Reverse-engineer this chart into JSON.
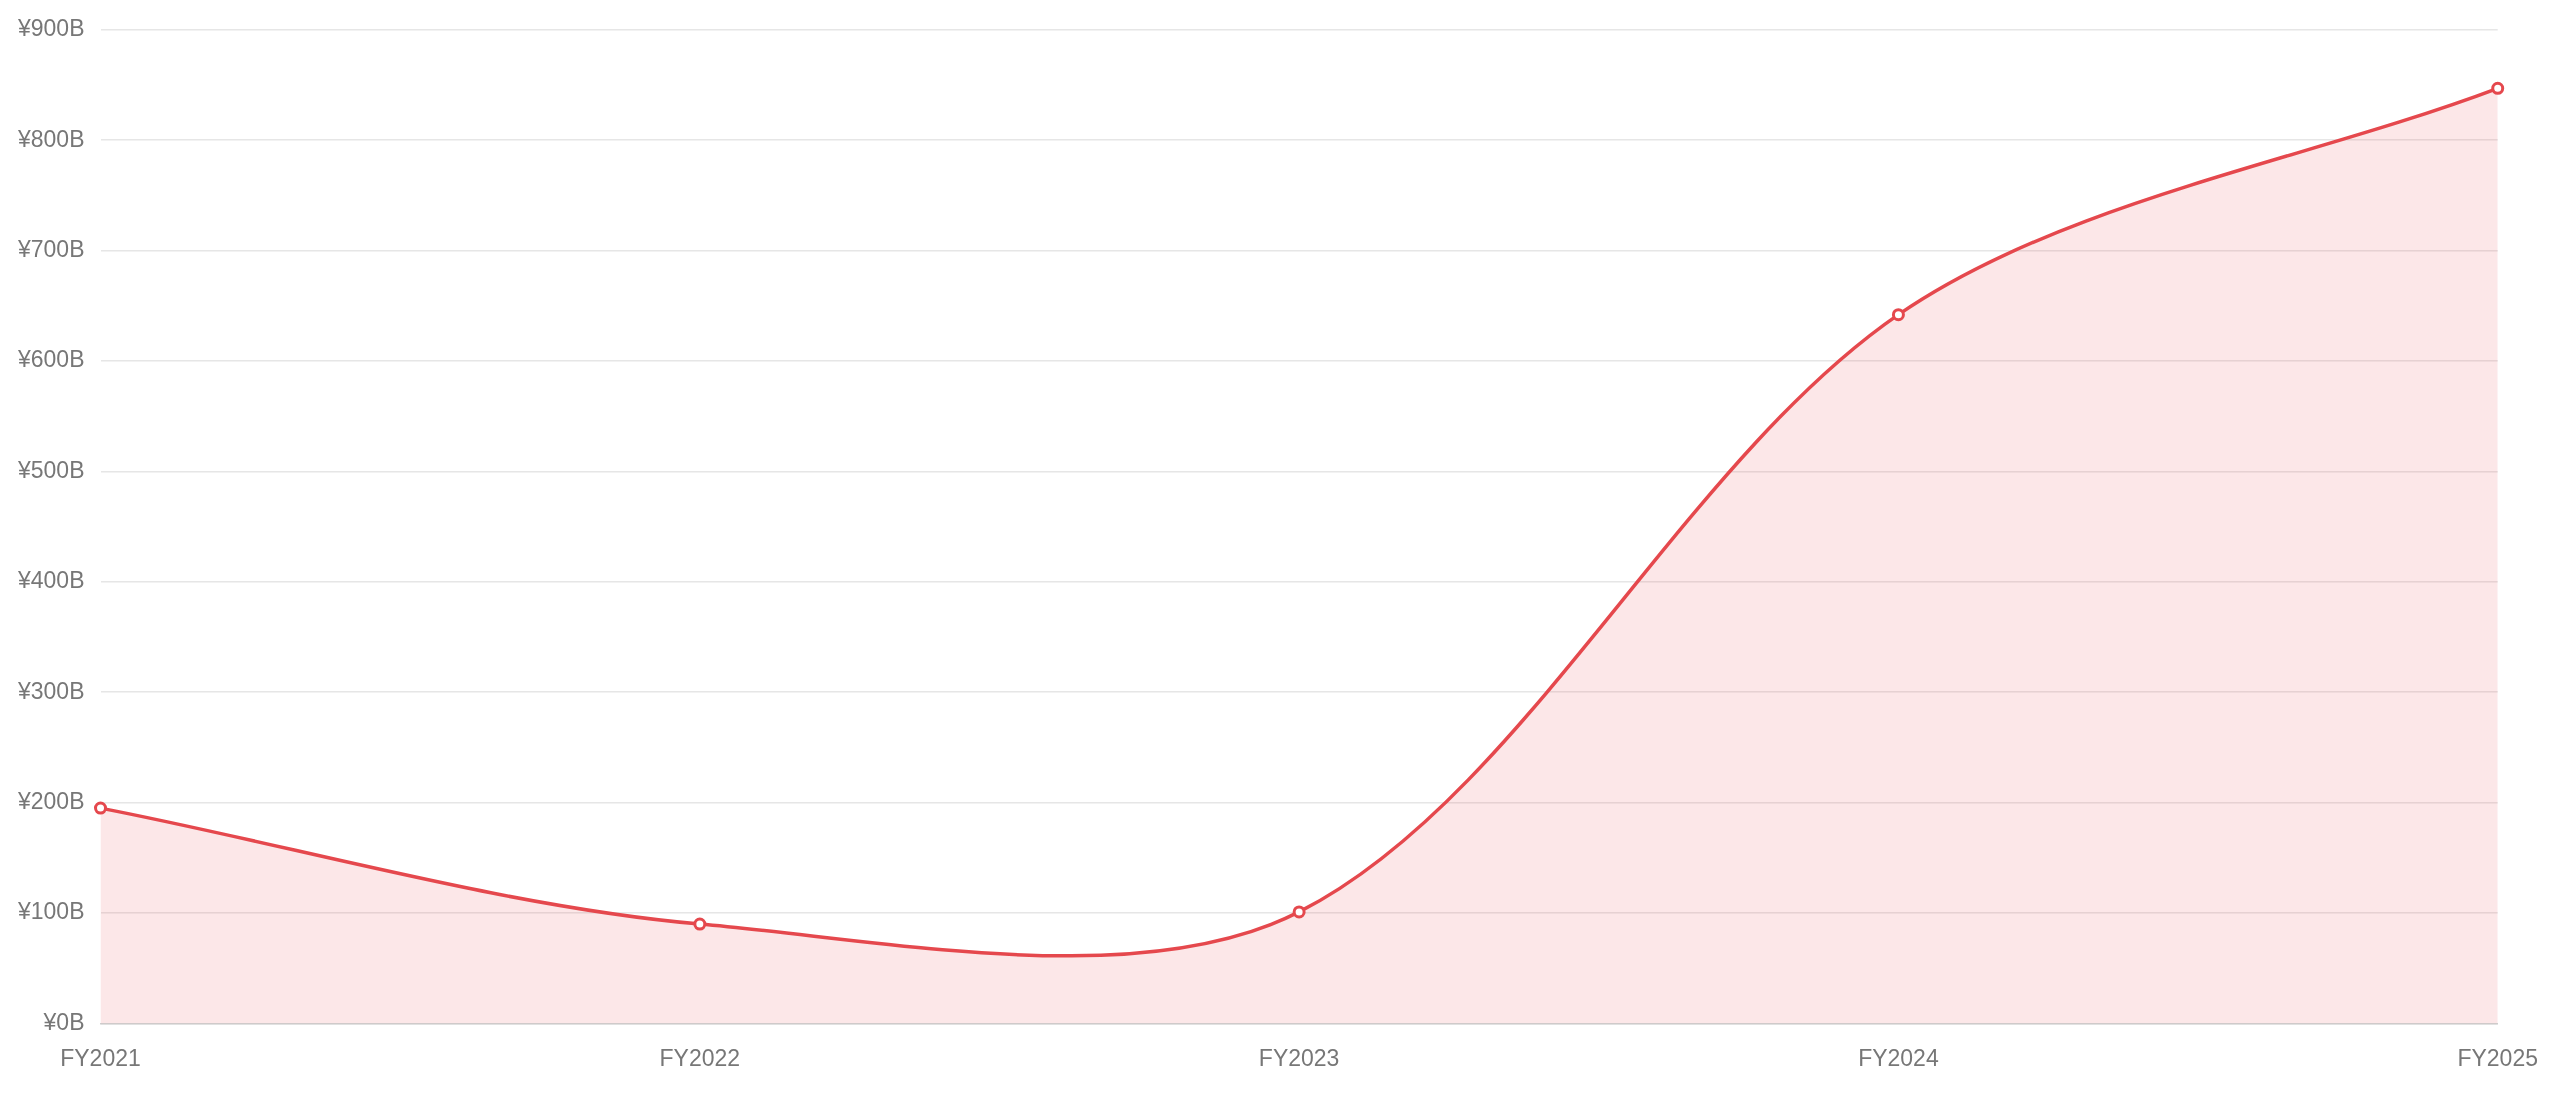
{
  "chart_data": {
    "type": "area",
    "categories": [
      "FY2021",
      "FY2022",
      "FY2023",
      "FY2024",
      "FY2025"
    ],
    "series": [
      {
        "color": "#e5484d",
        "values": [
          195,
          90,
          101,
          642,
          847
        ]
      }
    ],
    "ylim": [
      0,
      900
    ],
    "yticks": [
      {
        "value": 0,
        "label": "¥0B"
      },
      {
        "value": 100,
        "label": "¥100B"
      },
      {
        "value": 200,
        "label": "¥200B"
      },
      {
        "value": 300,
        "label": "¥300B"
      },
      {
        "value": 400,
        "label": "¥400B"
      },
      {
        "value": 500,
        "label": "¥500B"
      },
      {
        "value": 600,
        "label": "¥600B"
      },
      {
        "value": 700,
        "label": "¥700B"
      },
      {
        "value": 800,
        "label": "¥800B"
      },
      {
        "value": 900,
        "label": "¥900B"
      }
    ],
    "grid": "y",
    "marker": "circle"
  }
}
